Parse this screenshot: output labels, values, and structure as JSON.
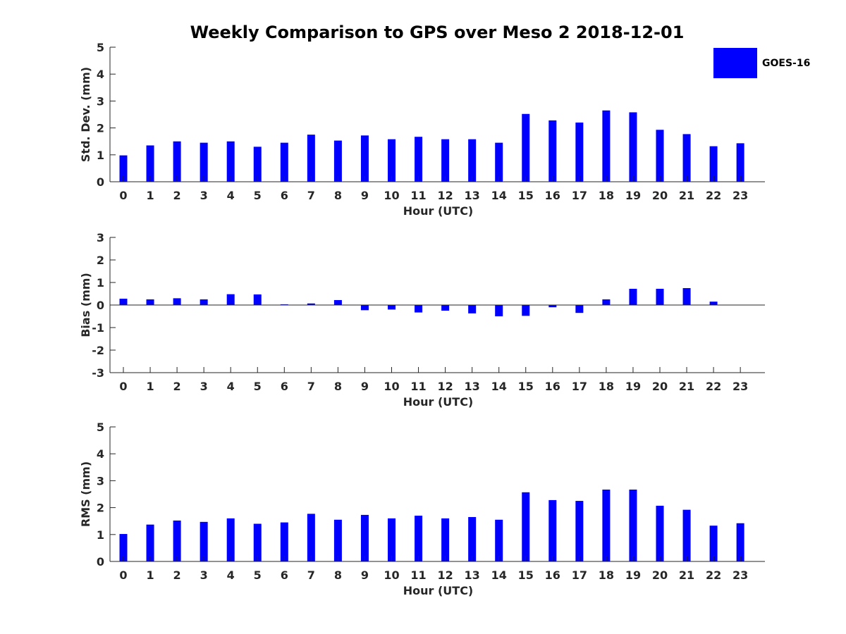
{
  "chart_data": {
    "title": "Weekly Comparison to GPS over Meso 2 2018-12-01",
    "legend": {
      "label": "GOES-16",
      "color": "#0000ff",
      "placement": "top-right"
    },
    "panels": [
      {
        "type": "bar",
        "name": "std-dev",
        "xlabel": "Hour (UTC)",
        "ylabel": "Std. Dev. (mm)",
        "ylim": [
          0,
          5
        ],
        "yticks": [
          0,
          1,
          2,
          3,
          4,
          5
        ],
        "x": [
          0,
          1,
          2,
          3,
          4,
          5,
          6,
          7,
          8,
          9,
          10,
          11,
          12,
          13,
          14,
          15,
          16,
          17,
          18,
          19,
          20,
          21,
          22,
          23
        ],
        "series": [
          {
            "name": "GOES-16",
            "values": [
              0.98,
              1.35,
              1.5,
              1.45,
              1.5,
              1.3,
              1.45,
              1.75,
              1.53,
              1.72,
              1.58,
              1.67,
              1.58,
              1.58,
              1.45,
              2.52,
              2.28,
              2.2,
              2.65,
              2.58,
              1.93,
              1.77,
              1.32,
              1.43
            ]
          }
        ]
      },
      {
        "type": "bar",
        "name": "bias",
        "xlabel": "Hour (UTC)",
        "ylabel": "Bias (mm)",
        "ylim": [
          -3,
          3
        ],
        "yticks": [
          -3,
          -2,
          -1,
          0,
          1,
          2,
          3
        ],
        "x": [
          0,
          1,
          2,
          3,
          4,
          5,
          6,
          7,
          8,
          9,
          10,
          11,
          12,
          13,
          14,
          15,
          16,
          17,
          18,
          19,
          20,
          21,
          22,
          23
        ],
        "series": [
          {
            "name": "GOES-16",
            "values": [
              0.28,
              0.25,
              0.3,
              0.25,
              0.48,
              0.47,
              0.03,
              0.07,
              0.22,
              -0.23,
              -0.2,
              -0.33,
              -0.25,
              -0.37,
              -0.5,
              -0.48,
              -0.1,
              -0.35,
              0.25,
              0.72,
              0.72,
              0.75,
              0.15,
              0.0
            ]
          }
        ]
      },
      {
        "type": "bar",
        "name": "rms",
        "xlabel": "Hour (UTC)",
        "ylabel": "RMS (mm)",
        "ylim": [
          0,
          5
        ],
        "yticks": [
          0,
          1,
          2,
          3,
          4,
          5
        ],
        "x": [
          0,
          1,
          2,
          3,
          4,
          5,
          6,
          7,
          8,
          9,
          10,
          11,
          12,
          13,
          14,
          15,
          16,
          17,
          18,
          19,
          20,
          21,
          22,
          23
        ],
        "series": [
          {
            "name": "GOES-16",
            "values": [
              1.02,
              1.37,
              1.52,
              1.47,
              1.6,
              1.4,
              1.45,
              1.77,
              1.55,
              1.73,
              1.6,
              1.7,
              1.6,
              1.65,
              1.55,
              2.57,
              2.28,
              2.25,
              2.67,
              2.67,
              2.07,
              1.92,
              1.33,
              1.42
            ]
          }
        ]
      }
    ]
  }
}
